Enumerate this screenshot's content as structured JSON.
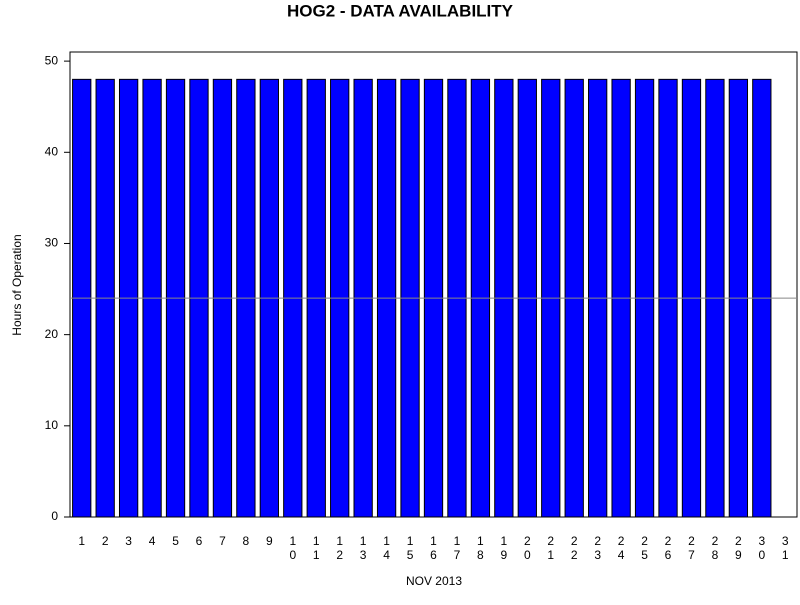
{
  "chart_data": {
    "type": "bar",
    "title": "HOG2 - DATA AVAILABILITY",
    "x_label": "NOV 2013",
    "y_label": "Hours of Operation",
    "categories": [
      "1",
      "2",
      "3",
      "4",
      "5",
      "6",
      "7",
      "8",
      "9",
      "10",
      "11",
      "12",
      "13",
      "14",
      "15",
      "16",
      "17",
      "18",
      "19",
      "20",
      "21",
      "22",
      "23",
      "24",
      "25",
      "26",
      "27",
      "28",
      "29",
      "30",
      "31"
    ],
    "values": [
      48,
      48,
      48,
      48,
      48,
      48,
      48,
      48,
      48,
      48,
      48,
      48,
      48,
      48,
      48,
      48,
      48,
      48,
      48,
      48,
      48,
      48,
      48,
      48,
      48,
      48,
      48,
      48,
      48,
      48,
      null
    ],
    "color": "#0000ff",
    "reference_line": 24,
    "ylim": [
      0,
      51
    ],
    "yticks": [
      0,
      10,
      20,
      30,
      40,
      50
    ]
  }
}
